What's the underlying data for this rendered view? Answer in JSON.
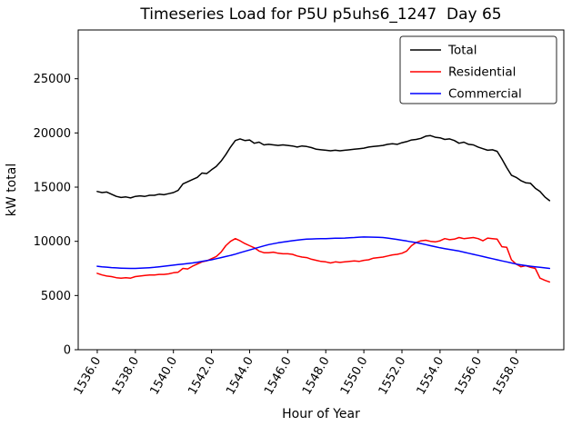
{
  "chart_data": {
    "type": "line",
    "title": "Timeseries Load for P5U p5uhs6_1247  Day 65",
    "xlabel": "Hour of Year",
    "ylabel": "kW total",
    "xlim": [
      1535.0,
      1560.5
    ],
    "ylim": [
      0,
      29500
    ],
    "grid": false,
    "legend_position": "upper right",
    "xticks": [
      1536,
      1538,
      1540,
      1542,
      1544,
      1546,
      1548,
      1550,
      1552,
      1554,
      1556,
      1558
    ],
    "xtick_labels": [
      "1536.0",
      "1538.0",
      "1540.0",
      "1542.0",
      "1544.0",
      "1546.0",
      "1548.0",
      "1550.0",
      "1552.0",
      "1554.0",
      "1556.0",
      "1558.0"
    ],
    "yticks": [
      0,
      5000,
      10000,
      15000,
      20000,
      25000
    ],
    "ytick_labels": [
      "0",
      "5000",
      "10000",
      "15000",
      "20000",
      "25000"
    ],
    "x_start": 1536.0,
    "x_step": 0.25,
    "x": [
      1536.0,
      1536.25,
      1536.5,
      1536.75,
      1537.0,
      1537.25,
      1537.5,
      1537.75,
      1538.0,
      1538.25,
      1538.5,
      1538.75,
      1539.0,
      1539.25,
      1539.5,
      1539.75,
      1540.0,
      1540.25,
      1540.5,
      1540.75,
      1541.0,
      1541.25,
      1541.5,
      1541.75,
      1542.0,
      1542.25,
      1542.5,
      1542.75,
      1543.0,
      1543.25,
      1543.5,
      1543.75,
      1544.0,
      1544.25,
      1544.5,
      1544.75,
      1545.0,
      1545.25,
      1545.5,
      1545.75,
      1546.0,
      1546.25,
      1546.5,
      1546.75,
      1547.0,
      1547.25,
      1547.5,
      1547.75,
      1548.0,
      1548.25,
      1548.5,
      1548.75,
      1549.0,
      1549.25,
      1549.5,
      1549.75,
      1550.0,
      1550.25,
      1550.5,
      1550.75,
      1551.0,
      1551.25,
      1551.5,
      1551.75,
      1552.0,
      1552.25,
      1552.5,
      1552.75,
      1553.0,
      1553.25,
      1553.5,
      1553.75,
      1554.0,
      1554.25,
      1554.5,
      1554.75,
      1555.0,
      1555.25,
      1555.5,
      1555.75,
      1556.0,
      1556.25,
      1556.5,
      1556.75,
      1557.0,
      1557.25,
      1557.5,
      1557.75,
      1558.0,
      1558.25,
      1558.5,
      1558.75,
      1559.0,
      1559.25,
      1559.5,
      1559.75
    ],
    "series": [
      {
        "name": "Total",
        "color": "#000000",
        "values": [
          14600,
          14500,
          14550,
          14350,
          14150,
          14050,
          14100,
          14000,
          14150,
          14200,
          14150,
          14250,
          14250,
          14350,
          14300,
          14400,
          14500,
          14700,
          15300,
          15500,
          15700,
          15900,
          16300,
          16250,
          16600,
          16900,
          17400,
          18000,
          18700,
          19300,
          19450,
          19300,
          19350,
          19050,
          19150,
          18900,
          18950,
          18900,
          18850,
          18900,
          18850,
          18800,
          18700,
          18800,
          18750,
          18650,
          18500,
          18450,
          18400,
          18350,
          18400,
          18350,
          18400,
          18450,
          18500,
          18550,
          18600,
          18700,
          18750,
          18800,
          18850,
          18950,
          19000,
          18950,
          19100,
          19200,
          19350,
          19400,
          19500,
          19700,
          19750,
          19600,
          19550,
          19400,
          19450,
          19300,
          19050,
          19150,
          18950,
          18900,
          18700,
          18550,
          18400,
          18450,
          18300,
          17600,
          16800,
          16100,
          15900,
          15600,
          15400,
          15350,
          14900,
          14600,
          14100,
          13750
        ]
      },
      {
        "name": "Residential",
        "color": "#ff0000",
        "values": [
          7050,
          6900,
          6800,
          6750,
          6650,
          6600,
          6650,
          6600,
          6750,
          6800,
          6850,
          6900,
          6900,
          6950,
          6950,
          7000,
          7100,
          7150,
          7500,
          7450,
          7700,
          7900,
          8100,
          8200,
          8400,
          8600,
          9000,
          9600,
          10000,
          10250,
          10050,
          9800,
          9600,
          9400,
          9100,
          8950,
          8950,
          9000,
          8900,
          8850,
          8850,
          8800,
          8650,
          8550,
          8500,
          8350,
          8250,
          8150,
          8100,
          8000,
          8100,
          8050,
          8100,
          8150,
          8200,
          8150,
          8250,
          8300,
          8450,
          8500,
          8550,
          8650,
          8750,
          8800,
          8900,
          9100,
          9600,
          9900,
          10050,
          10100,
          10000,
          9950,
          10050,
          10250,
          10150,
          10200,
          10350,
          10250,
          10300,
          10350,
          10250,
          10050,
          10300,
          10250,
          10200,
          9500,
          9450,
          8300,
          7900,
          7650,
          7750,
          7600,
          7500,
          6600,
          6400,
          6250
        ]
      },
      {
        "name": "Commercial",
        "color": "#0000ff",
        "values": [
          7700,
          7650,
          7620,
          7580,
          7550,
          7530,
          7510,
          7500,
          7500,
          7520,
          7540,
          7570,
          7600,
          7650,
          7700,
          7750,
          7800,
          7850,
          7900,
          7950,
          8000,
          8070,
          8150,
          8220,
          8300,
          8400,
          8500,
          8600,
          8700,
          8820,
          8950,
          9080,
          9200,
          9330,
          9450,
          9580,
          9700,
          9780,
          9860,
          9930,
          10000,
          10060,
          10110,
          10160,
          10200,
          10220,
          10230,
          10240,
          10250,
          10270,
          10280,
          10290,
          10300,
          10330,
          10350,
          10380,
          10400,
          10390,
          10380,
          10370,
          10350,
          10300,
          10230,
          10170,
          10100,
          10030,
          9950,
          9880,
          9800,
          9700,
          9600,
          9500,
          9400,
          9330,
          9250,
          9180,
          9100,
          9000,
          8900,
          8800,
          8700,
          8600,
          8500,
          8400,
          8300,
          8200,
          8100,
          8000,
          7900,
          7830,
          7760,
          7700,
          7650,
          7600,
          7550,
          7500
        ]
      }
    ]
  },
  "colors": {
    "background": "#ffffff",
    "axis": "#000000",
    "total": "#000000",
    "residential": "#ff0000",
    "commercial": "#0000ff",
    "legend_border": "#262626"
  }
}
